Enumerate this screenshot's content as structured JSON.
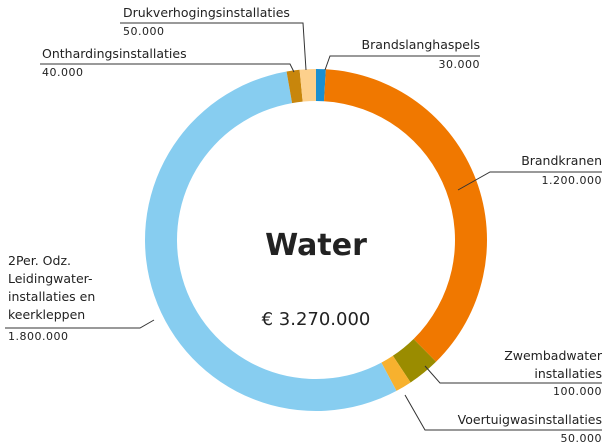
{
  "chart_data": {
    "type": "donut",
    "title": "Water",
    "center_label": "€ 3.270.000",
    "categories": [
      "Brandslanghaspels",
      "Brandkranen",
      "Zwembadwater\ninstallaties",
      "Voertuigwasinstallaties",
      "2Per. Odz.\nLeidingwater-\ninstallaties en\nkeerkleppen",
      "Onthardingsinstallaties",
      "Drukverhogingsinstallaties"
    ],
    "values": [
      30000,
      1200000,
      100000,
      50000,
      1800000,
      40000,
      50000
    ],
    "value_labels": [
      "30.000",
      "1.200.000",
      "100.000",
      "50.000",
      "1.800.000",
      "40.000",
      "50.000"
    ],
    "colors": [
      "#1a8fd0",
      "#f07800",
      "#9a8c00",
      "#f7b12e",
      "#87cdf0",
      "#c8860c",
      "#fdd08c"
    ]
  }
}
